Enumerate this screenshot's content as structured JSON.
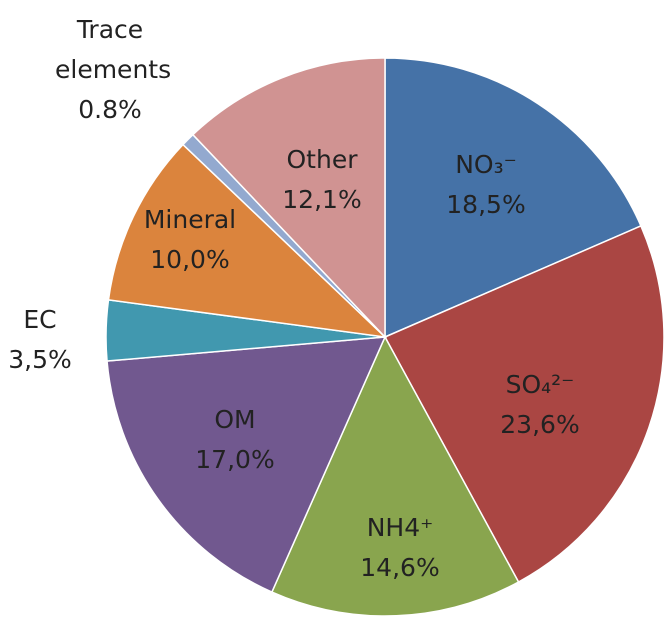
{
  "chart_data": {
    "type": "pie",
    "categories": [
      "NO₃⁻",
      "SO₄²⁻",
      "NH4⁺",
      "OM",
      "EC",
      "Mineral",
      "Trace elements",
      "Other"
    ],
    "values": [
      18.5,
      23.6,
      14.6,
      17.0,
      3.5,
      10.0,
      0.8,
      12.1
    ],
    "value_labels": [
      "18,5%",
      "23,6%",
      "14,6%",
      "17,0%",
      "3,5%",
      "10,0%",
      "0.8%",
      "12,1%"
    ],
    "colors": [
      "#4572a7",
      "#aa4643",
      "#89a54e",
      "#71588f",
      "#4198af",
      "#db843d",
      "#93a9cf",
      "#d09392"
    ]
  }
}
